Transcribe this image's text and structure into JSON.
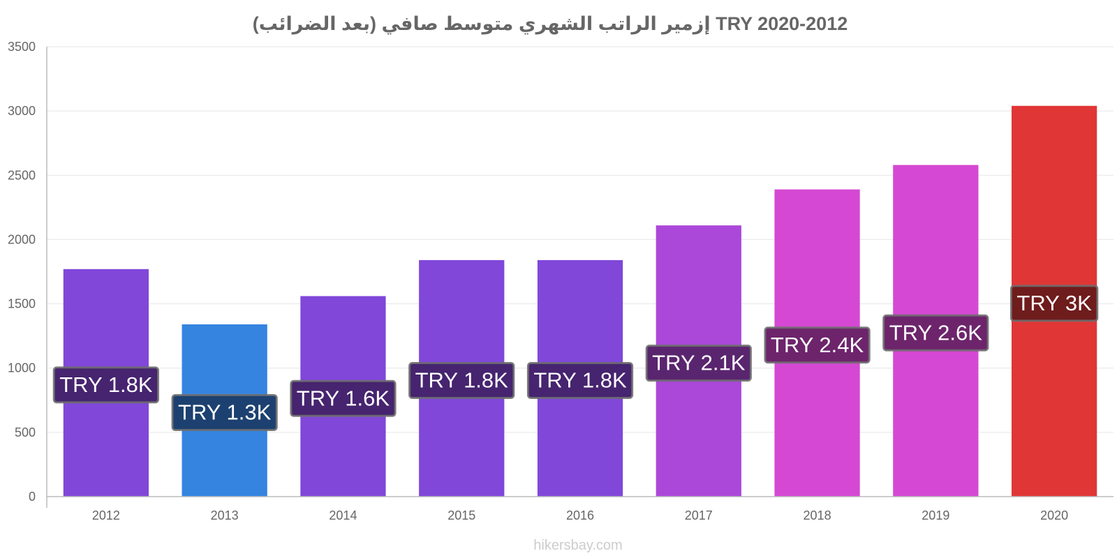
{
  "chart_data": {
    "type": "bar",
    "title": "إزمير الراتب الشهري متوسط صافي (بعد الضرائب) TRY 2020-2012",
    "xlabel": "",
    "ylabel": "",
    "ylim": [
      0,
      3500
    ],
    "yticks": [
      0,
      500,
      1000,
      1500,
      2000,
      2500,
      3000,
      3500
    ],
    "categories": [
      "2012",
      "2013",
      "2014",
      "2015",
      "2016",
      "2017",
      "2018",
      "2019",
      "2020"
    ],
    "values": [
      1770,
      1340,
      1560,
      1840,
      1840,
      2110,
      2390,
      2580,
      3040
    ],
    "labels": [
      "TRY 1.8K",
      "TRY 1.3K",
      "TRY 1.6K",
      "TRY 1.8K",
      "TRY 1.8K",
      "TRY 2.1K",
      "TRY 2.4K",
      "TRY 2.6K",
      "TRY 3K"
    ],
    "colors": [
      "#8047d9",
      "#3584e0",
      "#8047d9",
      "#8047d9",
      "#8047d9",
      "#ab48d9",
      "#d548d3",
      "#d548d3",
      "#e03636"
    ],
    "label_box_colors": [
      "#46246f",
      "#1c4170",
      "#46246f",
      "#46246f",
      "#46246f",
      "#5a256f",
      "#6d246b",
      "#6d246b",
      "#6f1c1c"
    ],
    "grid": true
  },
  "footer": {
    "source": "hikersbay.com"
  }
}
